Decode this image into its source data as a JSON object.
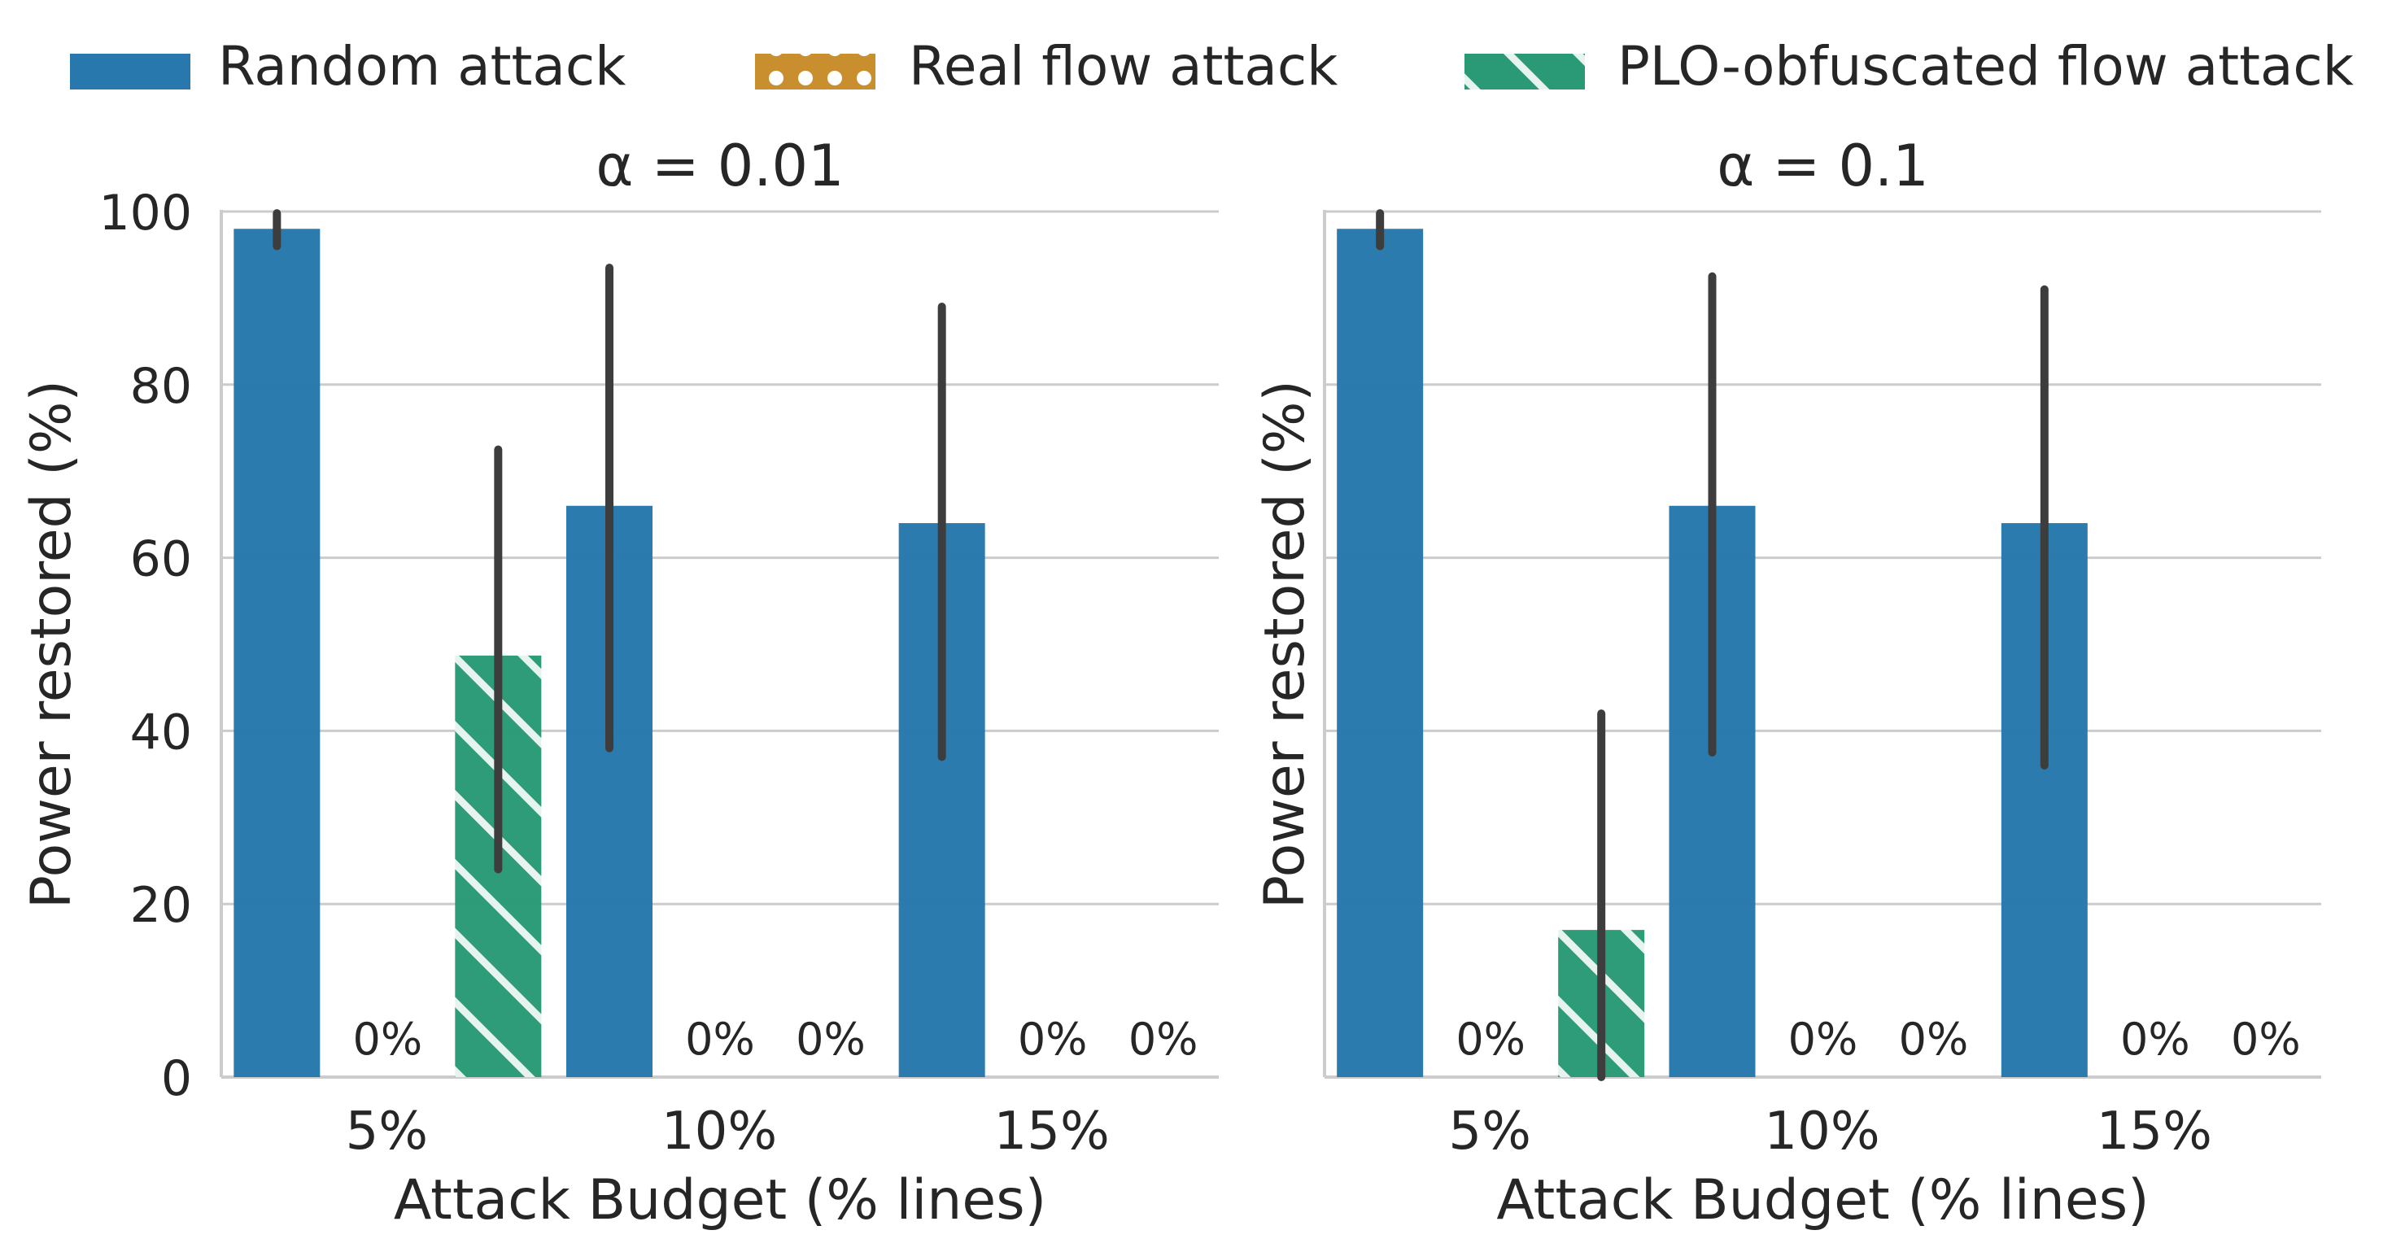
{
  "chart_data": [
    {
      "type": "bar",
      "title": "α = 0.01",
      "xlabel": "Attack Budget (% lines)",
      "ylabel": "Power restored (%)",
      "categories": [
        "5%",
        "10%",
        "15%"
      ],
      "ylim": [
        0,
        100
      ],
      "yticks": [
        "0",
        "20",
        "40",
        "60",
        "80",
        "100"
      ],
      "grid": "horizontal",
      "series": [
        {
          "name": "Random attack",
          "values": [
            98,
            66,
            64
          ],
          "ci_low": [
            96,
            38,
            37
          ],
          "ci_high": [
            99.8,
            93.5,
            89
          ]
        },
        {
          "name": "Real flow attack",
          "values": [
            0,
            0,
            0
          ],
          "ci_low": [
            null,
            null,
            null
          ],
          "ci_high": [
            null,
            null,
            null
          ],
          "labels": [
            "0%",
            "0%",
            "0%"
          ]
        },
        {
          "name": "PLO-obfuscated flow attack",
          "values": [
            48.7,
            0,
            0
          ],
          "ci_low": [
            24,
            null,
            null
          ],
          "ci_high": [
            72.5,
            null,
            null
          ],
          "labels": [
            null,
            "0%",
            "0%"
          ]
        }
      ]
    },
    {
      "type": "bar",
      "title": "α = 0.1",
      "xlabel": "Attack Budget (% lines)",
      "ylabel": "Power restored (%)",
      "categories": [
        "5%",
        "10%",
        "15%"
      ],
      "ylim": [
        0,
        100
      ],
      "yticks": [
        "0",
        "20",
        "40",
        "60",
        "80",
        "100"
      ],
      "grid": "horizontal",
      "series": [
        {
          "name": "Random attack",
          "values": [
            98,
            66,
            64
          ],
          "ci_low": [
            96,
            37.5,
            36
          ],
          "ci_high": [
            99.8,
            92.5,
            91
          ]
        },
        {
          "name": "Real flow attack",
          "values": [
            0,
            0,
            0
          ],
          "ci_low": [
            null,
            null,
            null
          ],
          "ci_high": [
            null,
            null,
            null
          ],
          "labels": [
            "0%",
            "0%",
            "0%"
          ]
        },
        {
          "name": "PLO-obfuscated flow attack",
          "values": [
            17,
            0,
            0
          ],
          "ci_low": [
            0,
            null,
            null
          ],
          "ci_high": [
            42,
            null,
            null
          ],
          "labels": [
            null,
            "0%",
            "0%"
          ]
        }
      ]
    }
  ],
  "legend": {
    "placement": "top",
    "items": [
      {
        "label": "Random attack",
        "color": "#2878ad",
        "pattern": "solid"
      },
      {
        "label": "Real flow attack",
        "color": "#c98f2f",
        "pattern": "dots"
      },
      {
        "label": "PLO-obfuscated flow attack",
        "color": "#2a9a76",
        "pattern": "hatch"
      }
    ]
  },
  "colors": {
    "random": "#2878ad",
    "real": "#c98f2f",
    "plo": "#2a9a76",
    "errbar": "#3d3d3d",
    "grid": "#cccccc"
  }
}
